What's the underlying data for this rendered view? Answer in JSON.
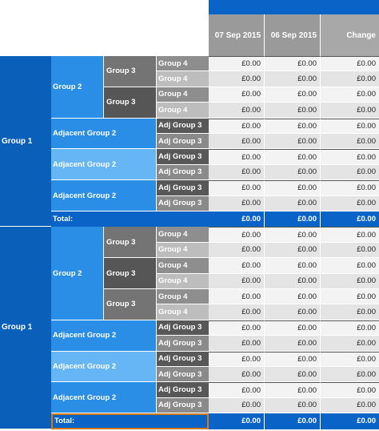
{
  "columns": [
    "07 Sep 2015",
    "06 Sep 2015",
    "Change"
  ],
  "currency_value": "£0.00",
  "total_label": "Total:",
  "colors": {
    "header_blue": "#0a63c7",
    "group1_blue": "#0a5fb8",
    "group2_blue": "#2a8de6",
    "group2_light": "#66b5f5",
    "selected_outline": "#d07a1c"
  },
  "blocks": [
    {
      "group1": "Group 1",
      "group2_sections": [
        {
          "label": "Group 2",
          "group3": [
            {
              "label": "Group 3",
              "group4": [
                "Group 4",
                "Group 4"
              ]
            },
            {
              "label": "Group 3",
              "group4": [
                "Group 4",
                "Group 4"
              ]
            }
          ]
        },
        {
          "label": "Adjacent Group 2",
          "adj": [
            "Adj Group 3",
            "Adj Group 3"
          ]
        },
        {
          "label": "Adjacent Group 2",
          "adj": [
            "Adj Group 3",
            "Adj Group 3"
          ]
        },
        {
          "label": "Adjacent Group 2",
          "adj": [
            "Adj Group 3",
            "Adj Group 3"
          ]
        }
      ],
      "total_selected": false
    },
    {
      "group1": "Group 1",
      "group2_sections": [
        {
          "label": "Group 2",
          "group3": [
            {
              "label": "Group 3",
              "group4": [
                "Group 4",
                "Group 4"
              ]
            },
            {
              "label": "Group 3",
              "group4": [
                "Group 4",
                "Group 4"
              ]
            },
            {
              "label": "Group 3",
              "group4": [
                "Group 4",
                "Group 4"
              ]
            }
          ]
        },
        {
          "label": "Adjacent Group 2",
          "adj": [
            "Adj Group 3",
            "Adj Group 3"
          ]
        },
        {
          "label": "Adjacent Group 2",
          "adj": [
            "Adj Group 3",
            "Adj Group 3"
          ]
        },
        {
          "label": "Adjacent Group 2",
          "adj": [
            "Adj Group 3",
            "Adj Group 3"
          ]
        }
      ],
      "total_selected": true
    }
  ]
}
